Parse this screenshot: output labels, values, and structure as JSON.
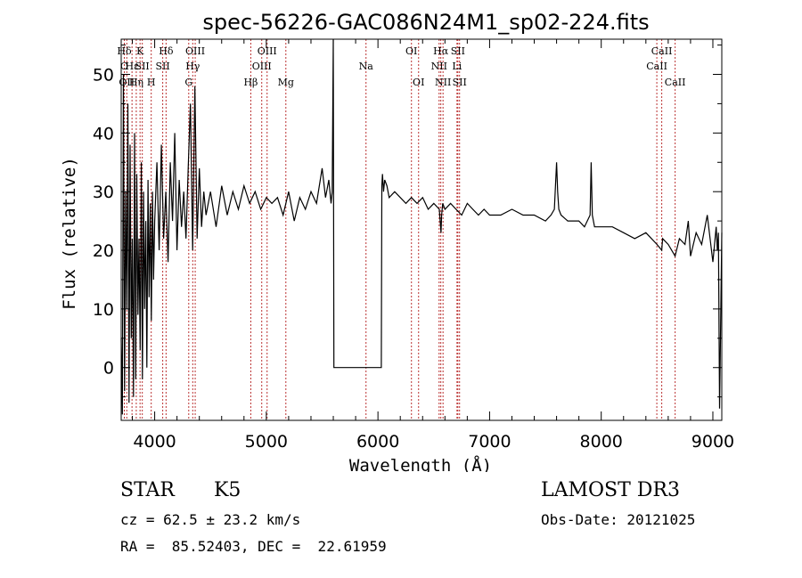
{
  "chart_data": {
    "type": "line",
    "title": "spec-56226-GAC086N24M1_sp02-224.fits",
    "xlabel": "Wavelength (Å)",
    "ylabel": "Flux (relative)",
    "xlim": [
      3700,
      9080
    ],
    "ylim": [
      -9,
      56
    ],
    "x_ticks": [
      4000,
      5000,
      6000,
      7000,
      8000,
      9000
    ],
    "y_ticks": [
      0,
      10,
      20,
      30,
      40,
      50
    ],
    "series": [
      {
        "name": "flux",
        "x": [
          3700,
          3710,
          3720,
          3730,
          3740,
          3750,
          3760,
          3770,
          3780,
          3790,
          3800,
          3810,
          3820,
          3830,
          3840,
          3850,
          3860,
          3870,
          3880,
          3890,
          3900,
          3910,
          3920,
          3930,
          3940,
          3950,
          3960,
          3970,
          3980,
          3990,
          4000,
          4020,
          4040,
          4060,
          4080,
          4100,
          4120,
          4140,
          4160,
          4180,
          4200,
          4220,
          4240,
          4260,
          4280,
          4300,
          4320,
          4340,
          4360,
          4380,
          4400,
          4420,
          4440,
          4460,
          4480,
          4500,
          4550,
          4600,
          4650,
          4700,
          4750,
          4800,
          4850,
          4900,
          4950,
          5000,
          5050,
          5100,
          5150,
          5200,
          5250,
          5300,
          5350,
          5400,
          5450,
          5500,
          5530,
          5560,
          5580,
          5590,
          5600,
          5605,
          5620,
          5640,
          5700,
          5800,
          5900,
          6000,
          6030,
          6035,
          6040,
          6050,
          6060,
          6080,
          6100,
          6150,
          6200,
          6250,
          6300,
          6350,
          6400,
          6450,
          6500,
          6550,
          6565,
          6570,
          6580,
          6600,
          6650,
          6700,
          6750,
          6800,
          6850,
          6900,
          6950,
          7000,
          7100,
          7200,
          7300,
          7400,
          7500,
          7550,
          7580,
          7600,
          7610,
          7620,
          7640,
          7700,
          7800,
          7850,
          7900,
          7910,
          7920,
          7940,
          8000,
          8100,
          8200,
          8300,
          8400,
          8500,
          8542,
          8550,
          8600,
          8662,
          8700,
          8750,
          8780,
          8800,
          8850,
          8900,
          8950,
          9000,
          9030,
          9040,
          9050,
          9060,
          9080
        ],
        "y": [
          5,
          -8,
          50,
          -4,
          30,
          10,
          45,
          -6,
          38,
          5,
          22,
          -5,
          40,
          -2,
          33,
          9,
          22,
          3,
          35,
          -2,
          30,
          10,
          25,
          0,
          32,
          12,
          28,
          8,
          30,
          15,
          25,
          35,
          20,
          38,
          22,
          30,
          18,
          35,
          25,
          40,
          20,
          32,
          24,
          30,
          22,
          34,
          45,
          20,
          48,
          22,
          34,
          24,
          30,
          26,
          28,
          30,
          24,
          31,
          26,
          30,
          27,
          31,
          28,
          30,
          27,
          29,
          28,
          29,
          26,
          30,
          25,
          29,
          27,
          30,
          28,
          34,
          29,
          32,
          28,
          30,
          56,
          0,
          0,
          0,
          0,
          0,
          0,
          0,
          0,
          31,
          33,
          30,
          32,
          31,
          29,
          30,
          29,
          28,
          29,
          28,
          29,
          27,
          28,
          27,
          23,
          26,
          28,
          27,
          28,
          27,
          26,
          28,
          27,
          26,
          27,
          26,
          26,
          27,
          26,
          26,
          25,
          26,
          27,
          35,
          30,
          27,
          26,
          25,
          25,
          24,
          26,
          35,
          26,
          24,
          24,
          24,
          23,
          22,
          23,
          21,
          20,
          22,
          21,
          19,
          22,
          21,
          25,
          19,
          23,
          21,
          26,
          18,
          24,
          20,
          23,
          -7,
          23
        ]
      }
    ],
    "spectral_lines": [
      {
        "name": "Hδ",
        "wl": 3728,
        "row": 1
      },
      {
        "name": "O",
        "wl": 3728,
        "row": 2
      },
      {
        "name": "OII",
        "wl": 3750,
        "row": 3
      },
      {
        "name": "Hε",
        "wl": 3797,
        "row": 2
      },
      {
        "name": "Hη",
        "wl": 3835,
        "row": 3
      },
      {
        "name": "K",
        "wl": 3869,
        "row": 1
      },
      {
        "name": "SII",
        "wl": 3889,
        "row": 2
      },
      {
        "name": "H",
        "wl": 3969,
        "row": 3
      },
      {
        "name": "SII",
        "wl": 4072,
        "row": 2
      },
      {
        "name": "Hδ",
        "wl": 4102,
        "row": 1
      },
      {
        "name": "G",
        "wl": 4305,
        "row": 3
      },
      {
        "name": "Hγ",
        "wl": 4341,
        "row": 2
      },
      {
        "name": "OIII",
        "wl": 4363,
        "row": 1
      },
      {
        "name": "Hβ",
        "wl": 4861,
        "row": 3
      },
      {
        "name": "OIII",
        "wl": 4959,
        "row": 2
      },
      {
        "name": "OIII",
        "wl": 5007,
        "row": 1
      },
      {
        "name": "Mg",
        "wl": 5175,
        "row": 3
      },
      {
        "name": "Na",
        "wl": 5893,
        "row": 2
      },
      {
        "name": "OI",
        "wl": 6300,
        "row": 1
      },
      {
        "name": "OI",
        "wl": 6364,
        "row": 3
      },
      {
        "name": "NII",
        "wl": 6548,
        "row": 2
      },
      {
        "name": "Hα",
        "wl": 6563,
        "row": 1
      },
      {
        "name": "NII",
        "wl": 6583,
        "row": 3
      },
      {
        "name": "Li",
        "wl": 6708,
        "row": 2
      },
      {
        "name": "SII",
        "wl": 6716,
        "row": 1
      },
      {
        "name": "SII",
        "wl": 6731,
        "row": 3
      },
      {
        "name": "CaII",
        "wl": 8498,
        "row": 2
      },
      {
        "name": "CaII",
        "wl": 8542,
        "row": 1
      },
      {
        "name": "CaII",
        "wl": 8662,
        "row": 3
      }
    ],
    "line_colors": {
      "data": "#000000",
      "marker": "#bb3333"
    }
  },
  "info": {
    "object_class": "STAR",
    "subclass": "K5",
    "cz": "cz = 62.5 ± 23.2 km/s",
    "coords": "RA =  85.52403, DEC =  22.61959",
    "survey": "LAMOST DR3",
    "obs_date": "Obs-Date: 20121025"
  }
}
